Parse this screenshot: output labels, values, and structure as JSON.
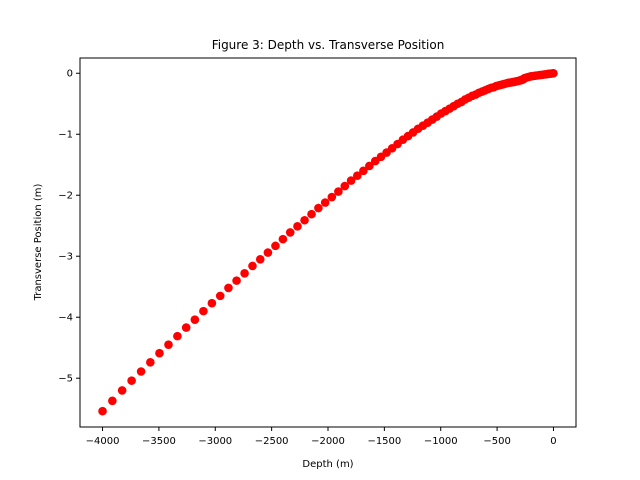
{
  "chart_data": {
    "type": "scatter",
    "title": "Figure 3: Depth vs. Transverse Position",
    "xlabel": "Depth (m)",
    "ylabel": "Transverse Position (m)",
    "xlim": [
      -4200,
      200
    ],
    "ylim": [
      -5.8,
      0.25
    ],
    "xticks": [
      -4000,
      -3500,
      -3000,
      -2500,
      -2000,
      -1500,
      -1000,
      -500,
      0
    ],
    "xtick_labels": [
      "−4000",
      "−3500",
      "−3000",
      "−2500",
      "−2000",
      "−1500",
      "−1000",
      "−500",
      "0"
    ],
    "yticks": [
      0,
      -1,
      -2,
      -3,
      -4,
      -5
    ],
    "ytick_labels": [
      "0",
      "−1",
      "−2",
      "−3",
      "−4",
      "−5"
    ],
    "grid": false,
    "marker_color": "#ff0000",
    "series": [
      {
        "marker": "circle",
        "x": [
          -4000,
          -3913,
          -3826,
          -3742,
          -3658,
          -3576,
          -3495,
          -3415,
          -3336,
          -3258,
          -3181,
          -3105,
          -3030,
          -2956,
          -2883,
          -2811,
          -2740,
          -2670,
          -2601,
          -2533,
          -2466,
          -2400,
          -2335,
          -2271,
          -2208,
          -2146,
          -2085,
          -2025,
          -1966,
          -1908,
          -1851,
          -1795,
          -1740,
          -1686,
          -1633,
          -1581,
          -1530,
          -1480,
          -1431,
          -1383,
          -1336,
          -1290,
          -1245,
          -1201,
          -1158,
          -1116,
          -1075,
          -1035,
          -996,
          -958,
          -921,
          -885,
          -850,
          -816,
          -783,
          -751,
          -720,
          -690,
          -661,
          -633,
          -606,
          -580,
          -555,
          -531,
          -508,
          -486,
          -465,
          -445,
          -426,
          -408,
          -391,
          -375,
          -360,
          -346,
          -333,
          -321,
          -310,
          -300,
          -291,
          -283,
          -276,
          -270,
          -265,
          -261,
          -258,
          -256,
          -240,
          -220,
          -200,
          -180,
          -160,
          -140,
          -120,
          -100,
          -80,
          -60,
          -45,
          -30,
          -15,
          -5,
          0
        ],
        "y": [
          -5.54,
          -5.37,
          -5.2,
          -5.04,
          -4.89,
          -4.74,
          -4.59,
          -4.45,
          -4.31,
          -4.17,
          -4.04,
          -3.9,
          -3.77,
          -3.65,
          -3.52,
          -3.4,
          -3.28,
          -3.16,
          -3.05,
          -2.94,
          -2.83,
          -2.72,
          -2.61,
          -2.51,
          -2.41,
          -2.31,
          -2.21,
          -2.12,
          -2.03,
          -1.94,
          -1.85,
          -1.76,
          -1.68,
          -1.6,
          -1.52,
          -1.44,
          -1.37,
          -1.3,
          -1.23,
          -1.16,
          -1.09,
          -1.03,
          -0.97,
          -0.91,
          -0.86,
          -0.81,
          -0.76,
          -0.71,
          -0.66,
          -0.62,
          -0.58,
          -0.54,
          -0.5,
          -0.47,
          -0.43,
          -0.4,
          -0.37,
          -0.35,
          -0.32,
          -0.3,
          -0.28,
          -0.26,
          -0.24,
          -0.23,
          -0.21,
          -0.2,
          -0.19,
          -0.18,
          -0.17,
          -0.16,
          -0.155,
          -0.15,
          -0.145,
          -0.14,
          -0.135,
          -0.13,
          -0.125,
          -0.12,
          -0.115,
          -0.11,
          -0.105,
          -0.1,
          -0.095,
          -0.09,
          -0.085,
          -0.08,
          -0.07,
          -0.06,
          -0.05,
          -0.045,
          -0.04,
          -0.035,
          -0.03,
          -0.025,
          -0.02,
          -0.015,
          -0.01,
          -0.007,
          -0.004,
          -0.002,
          0
        ]
      }
    ]
  }
}
